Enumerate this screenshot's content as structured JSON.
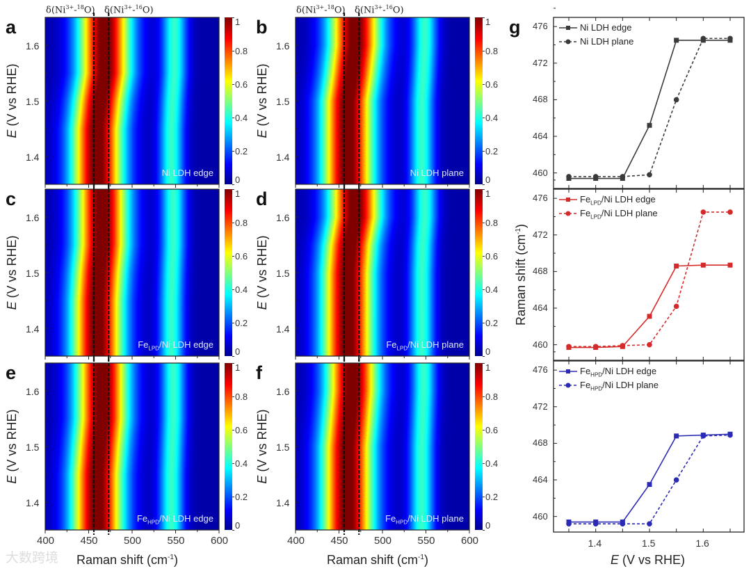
{
  "header": {
    "peak_label_18O": {
      "pre": "δ(Ni",
      "sup": "3+",
      "mid": "-",
      "sup2": "18",
      "post": "O)"
    },
    "peak_label_16O": {
      "pre": "δ(Ni",
      "sup": "3+",
      "mid": "-",
      "sup2": "16",
      "post": "O)"
    }
  },
  "watermark": "大数跨境",
  "chart_data": [
    {
      "type": "heatmap",
      "panels": [
        {
          "letter": "a",
          "legend": {
            "pre": "Ni LDH edge",
            "sub": "",
            "post": ""
          },
          "series_ref": "Ni LDH edge"
        },
        {
          "letter": "b",
          "legend": {
            "pre": "Ni LDH plane",
            "sub": "",
            "post": ""
          },
          "series_ref": "Ni LDH plane"
        },
        {
          "letter": "c",
          "legend": {
            "pre": "Fe",
            "sub": "LPD",
            "post": "/Ni LDH edge"
          },
          "series_ref": "FeLPD/Ni LDH edge"
        },
        {
          "letter": "d",
          "legend": {
            "pre": "Fe",
            "sub": "LPD",
            "post": "/Ni LDH plane"
          },
          "series_ref": "FeLPD/Ni LDH plane"
        },
        {
          "letter": "e",
          "legend": {
            "pre": "Fe",
            "sub": "HPD",
            "post": "/Ni LDH edge"
          },
          "series_ref": "FeHPD/Ni LDH edge"
        },
        {
          "letter": "f",
          "legend": {
            "pre": "Fe",
            "sub": "HPD",
            "post": "/Ni LDH plane"
          },
          "series_ref": "FeHPD/Ni LDH plane"
        }
      ],
      "xlabel": {
        "pre": "Raman shift (cm",
        "sup": "-1",
        "post": ")"
      },
      "ylabel": {
        "italic": "E",
        "rest": " (V vs RHE)"
      },
      "xlim": [
        400,
        600
      ],
      "ylim": [
        1.35,
        1.65
      ],
      "xticks": [
        "400",
        "450",
        "500",
        "550",
        "600"
      ],
      "yticks": [
        "1.4",
        "1.5",
        "1.6"
      ],
      "colorbar": {
        "range": [
          0,
          1
        ],
        "ticks": [
          "0",
          "0.2",
          "0.4",
          "0.6",
          "0.8",
          "1"
        ],
        "colormap": "jet"
      },
      "reference_lines_cm1": [
        456,
        473
      ],
      "approx_peaks_cm1": {
        "main": 463,
        "secondary": 545,
        "secondary_relative_intensity": 0.42
      }
    },
    {
      "type": "line",
      "letter": "g",
      "x": [
        1.35,
        1.4,
        1.45,
        1.5,
        1.55,
        1.6,
        1.65
      ],
      "xlabel": {
        "italic": "E",
        "rest": " (V vs RHE)"
      },
      "ylabel": {
        "pre": "Raman shift (cm",
        "sup": "-1",
        "post": ")"
      },
      "xticks": [
        "1.4",
        "1.5",
        "1.6"
      ],
      "yticks": [
        "460",
        "464",
        "468",
        "472",
        "476"
      ],
      "ylim": [
        458.3,
        477
      ],
      "subplots": [
        {
          "color": "#3a3a3a",
          "series": [
            {
              "name": "Ni LDH edge",
              "legend": {
                "pre": "Ni LDH edge",
                "sub": "",
                "post": ""
              },
              "style": "solid",
              "marker": "square",
              "values": [
                459.4,
                459.4,
                459.4,
                465.2,
                474.5,
                474.5,
                474.5
              ]
            },
            {
              "name": "Ni LDH plane",
              "legend": {
                "pre": "Ni LDH plane",
                "sub": "",
                "post": ""
              },
              "style": "dashed",
              "marker": "circle",
              "values": [
                459.6,
                459.6,
                459.6,
                459.8,
                468.0,
                474.7,
                474.7
              ]
            }
          ]
        },
        {
          "color": "#d42a2a",
          "series": [
            {
              "name": "FeLPD/Ni LDH edge",
              "legend": {
                "pre": "Fe",
                "sub": "LPD",
                "post": "/Ni LDH edge"
              },
              "style": "solid",
              "marker": "square",
              "values": [
                459.7,
                459.7,
                459.8,
                463.1,
                468.6,
                468.7,
                468.7
              ]
            },
            {
              "name": "FeLPD/Ni LDH plane",
              "legend": {
                "pre": "Fe",
                "sub": "LPD",
                "post": "/Ni LDH plane"
              },
              "style": "dashed",
              "marker": "circle",
              "values": [
                459.8,
                459.8,
                459.9,
                460.0,
                464.2,
                474.5,
                474.5
              ]
            }
          ]
        },
        {
          "color": "#2a2ab4",
          "series": [
            {
              "name": "FeHPD/Ni LDH edge",
              "legend": {
                "pre": "Fe",
                "sub": "HPD",
                "post": "/Ni LDH edge"
              },
              "style": "solid",
              "marker": "square",
              "values": [
                459.4,
                459.4,
                459.4,
                463.5,
                468.8,
                468.9,
                469.0
              ]
            },
            {
              "name": "FeHPD/Ni LDH plane",
              "legend": {
                "pre": "Fe",
                "sub": "HPD",
                "post": "/Ni LDH plane"
              },
              "style": "dashed",
              "marker": "circle",
              "values": [
                459.2,
                459.2,
                459.2,
                459.2,
                464.0,
                468.8,
                468.9
              ]
            }
          ]
        }
      ]
    }
  ]
}
